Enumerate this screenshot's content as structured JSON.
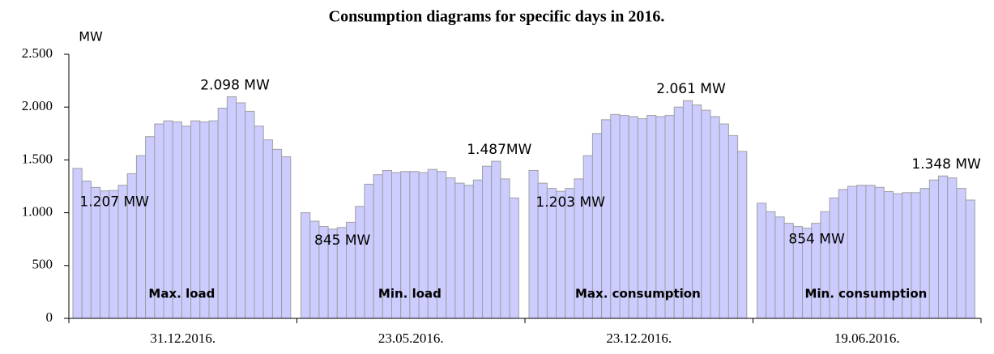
{
  "chart_data": {
    "type": "bar",
    "title": "Consumption diagrams for specific days in  2016.",
    "y_label": "MW",
    "color": "#ccccff",
    "ylim": [
      0,
      2500
    ],
    "yticks": [
      0,
      500,
      {
        "value": 1000,
        "label": "1.000"
      },
      {
        "value": 1500,
        "label": "1.500"
      },
      {
        "value": 2000,
        "label": "2.000"
      },
      {
        "value": 2500,
        "label": "2.500"
      }
    ],
    "categories": [
      "31.12.2016.",
      "23.05.2016.",
      "23.12.2016.",
      "19.06.2016."
    ],
    "groups": [
      {
        "name": "Max. load",
        "values": [
          1420,
          1300,
          1240,
          1207,
          1210,
          1260,
          1370,
          1540,
          1720,
          1840,
          1870,
          1860,
          1820,
          1870,
          1860,
          1870,
          1990,
          2098,
          2040,
          1960,
          1820,
          1690,
          1600,
          1530
        ],
        "value_labels": [
          null,
          null,
          null,
          "1.207 MW",
          null,
          null,
          null,
          null,
          null,
          null,
          null,
          null,
          null,
          null,
          null,
          null,
          null,
          "2.098 MW",
          null,
          null,
          null,
          null,
          null,
          null
        ]
      },
      {
        "name": "Min. load",
        "values": [
          1000,
          920,
          870,
          845,
          860,
          910,
          1060,
          1270,
          1360,
          1400,
          1380,
          1390,
          1390,
          1380,
          1410,
          1390,
          1330,
          1280,
          1260,
          1310,
          1440,
          1487,
          1320,
          1140
        ],
        "value_labels": [
          null,
          null,
          null,
          "845 MW",
          null,
          null,
          null,
          null,
          null,
          null,
          null,
          null,
          null,
          null,
          null,
          null,
          null,
          null,
          null,
          null,
          null,
          "1.487MW",
          null,
          null
        ]
      },
      {
        "name": "Max. consumption",
        "values": [
          1400,
          1280,
          1230,
          1203,
          1230,
          1320,
          1540,
          1750,
          1880,
          1930,
          1920,
          1910,
          1890,
          1920,
          1910,
          1920,
          2000,
          2061,
          2020,
          1970,
          1910,
          1840,
          1730,
          1580
        ],
        "value_labels": [
          null,
          null,
          null,
          "1.203 MW",
          null,
          null,
          null,
          null,
          null,
          null,
          null,
          null,
          null,
          null,
          null,
          null,
          null,
          "2.061 MW",
          null,
          null,
          null,
          null,
          null,
          null
        ]
      },
      {
        "name": "Min. consumption",
        "values": [
          1090,
          1010,
          960,
          900,
          870,
          854,
          900,
          1010,
          1140,
          1220,
          1250,
          1260,
          1260,
          1240,
          1200,
          1180,
          1190,
          1190,
          1230,
          1310,
          1348,
          1330,
          1230,
          1120
        ],
        "value_labels": [
          null,
          null,
          null,
          null,
          null,
          "854 MW",
          null,
          null,
          null,
          null,
          null,
          null,
          null,
          null,
          null,
          null,
          null,
          null,
          null,
          null,
          "1.348 MW",
          null,
          null,
          null
        ]
      }
    ]
  }
}
